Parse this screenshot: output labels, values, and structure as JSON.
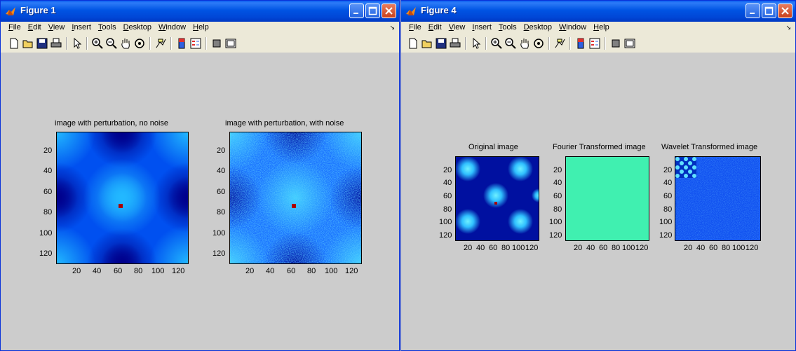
{
  "windows": [
    {
      "title": "Figure 1",
      "menus": [
        "File",
        "Edit",
        "View",
        "Insert",
        "Tools",
        "Desktop",
        "Window",
        "Help"
      ],
      "plots": [
        {
          "title": "image with perturbation, no noise",
          "yticks": [
            "20",
            "40",
            "60",
            "80",
            "100",
            "120"
          ],
          "xticks": [
            "20",
            "40",
            "60",
            "80",
            "100",
            "120"
          ]
        },
        {
          "title": "image with perturbation, with noise",
          "yticks": [
            "20",
            "40",
            "60",
            "80",
            "100",
            "120"
          ],
          "xticks": [
            "20",
            "40",
            "60",
            "80",
            "100",
            "120"
          ]
        }
      ]
    },
    {
      "title": "Figure 4",
      "menus": [
        "File",
        "Edit",
        "View",
        "Insert",
        "Tools",
        "Desktop",
        "Window",
        "Help"
      ],
      "plots": [
        {
          "title": "Original image",
          "yticks": [
            "20",
            "40",
            "60",
            "80",
            "100",
            "120"
          ],
          "xticks": [
            "20",
            "40",
            "60",
            "80",
            "100",
            "120"
          ]
        },
        {
          "title": "Fourier Transformed image",
          "yticks": [
            "20",
            "40",
            "60",
            "80",
            "100",
            "120"
          ],
          "xticks": [
            "20",
            "40",
            "60",
            "80",
            "100",
            "120"
          ]
        },
        {
          "title": "Wavelet Transformed image",
          "yticks": [
            "20",
            "40",
            "60",
            "80",
            "100",
            "120"
          ],
          "xticks": [
            "20",
            "40",
            "60",
            "80",
            "100",
            "120"
          ]
        }
      ]
    }
  ],
  "colors": {
    "titlebar": "#0054e3",
    "menubar": "#ece9d8",
    "figure_bg": "#cccccc",
    "close_button": "#c9401c",
    "marker": "#aa0000",
    "fourier_fill": "#40f0b0"
  }
}
